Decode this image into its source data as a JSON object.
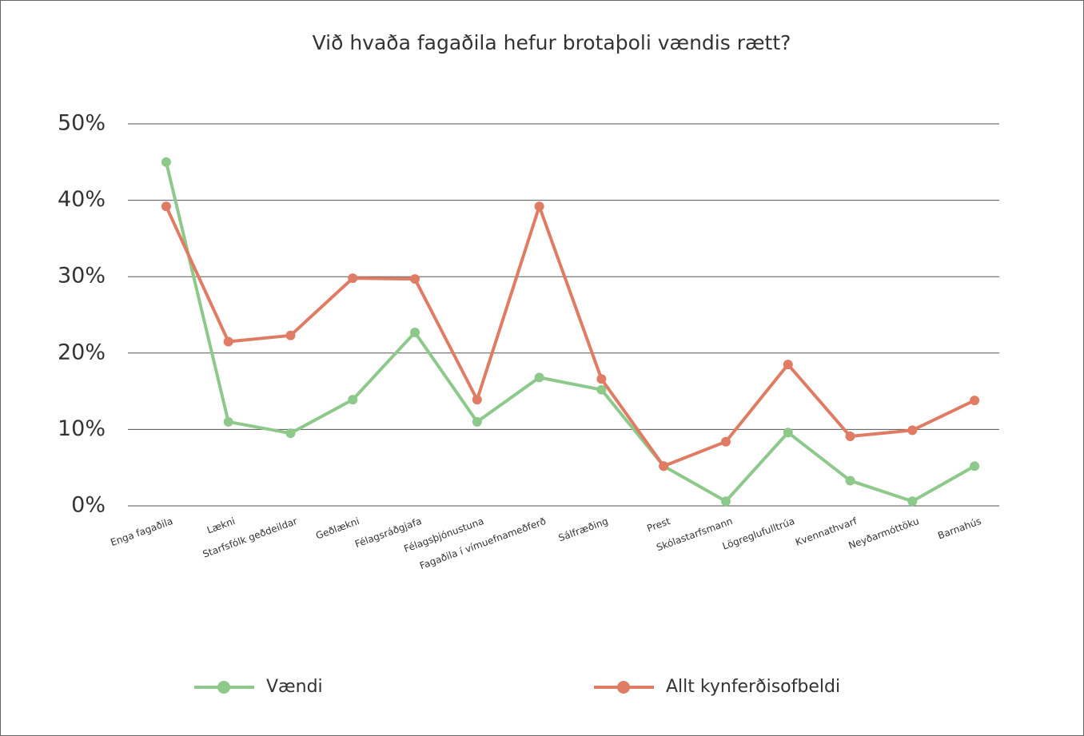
{
  "chart_data": {
    "type": "line",
    "title": "Við hvaða fagaðila hefur brotaþoli vændis rætt?",
    "categories": [
      "Enga fagaðila",
      "Lækni",
      "Starfsfólk geðdeildar",
      "Geðlækni",
      "Félagsráðgjafa",
      "Félagsþjónustuna",
      "Fagaðila í vímuefnameðferð",
      "Sálfræðing",
      "Prest",
      "Skólastarfsmann",
      "Lögreglufulltrúa",
      "Kvennathvarf",
      "Neyðarmóttöku",
      "Barnahús"
    ],
    "series": [
      {
        "name": "Vændi",
        "color": "#8dc98a",
        "values": [
          45.0,
          11.0,
          9.5,
          13.9,
          22.7,
          11.0,
          16.8,
          15.2,
          5.2,
          0.6,
          9.6,
          3.3,
          0.6,
          5.2
        ]
      },
      {
        "name": "Allt kynferðisofbeldi",
        "color": "#e07b64",
        "values": [
          39.2,
          21.5,
          22.3,
          29.8,
          29.7,
          13.9,
          39.2,
          16.6,
          5.2,
          8.4,
          18.5,
          9.1,
          9.9,
          13.8
        ]
      }
    ],
    "ylim": [
      0,
      50
    ],
    "yticks": [
      {
        "value": 0,
        "label": "0%"
      },
      {
        "value": 10,
        "label": "10%"
      },
      {
        "value": 20,
        "label": "20%"
      },
      {
        "value": 30,
        "label": "30%"
      },
      {
        "value": 40,
        "label": "40%"
      },
      {
        "value": 50,
        "label": "50%"
      }
    ],
    "grid": true,
    "legend": "bottom"
  }
}
